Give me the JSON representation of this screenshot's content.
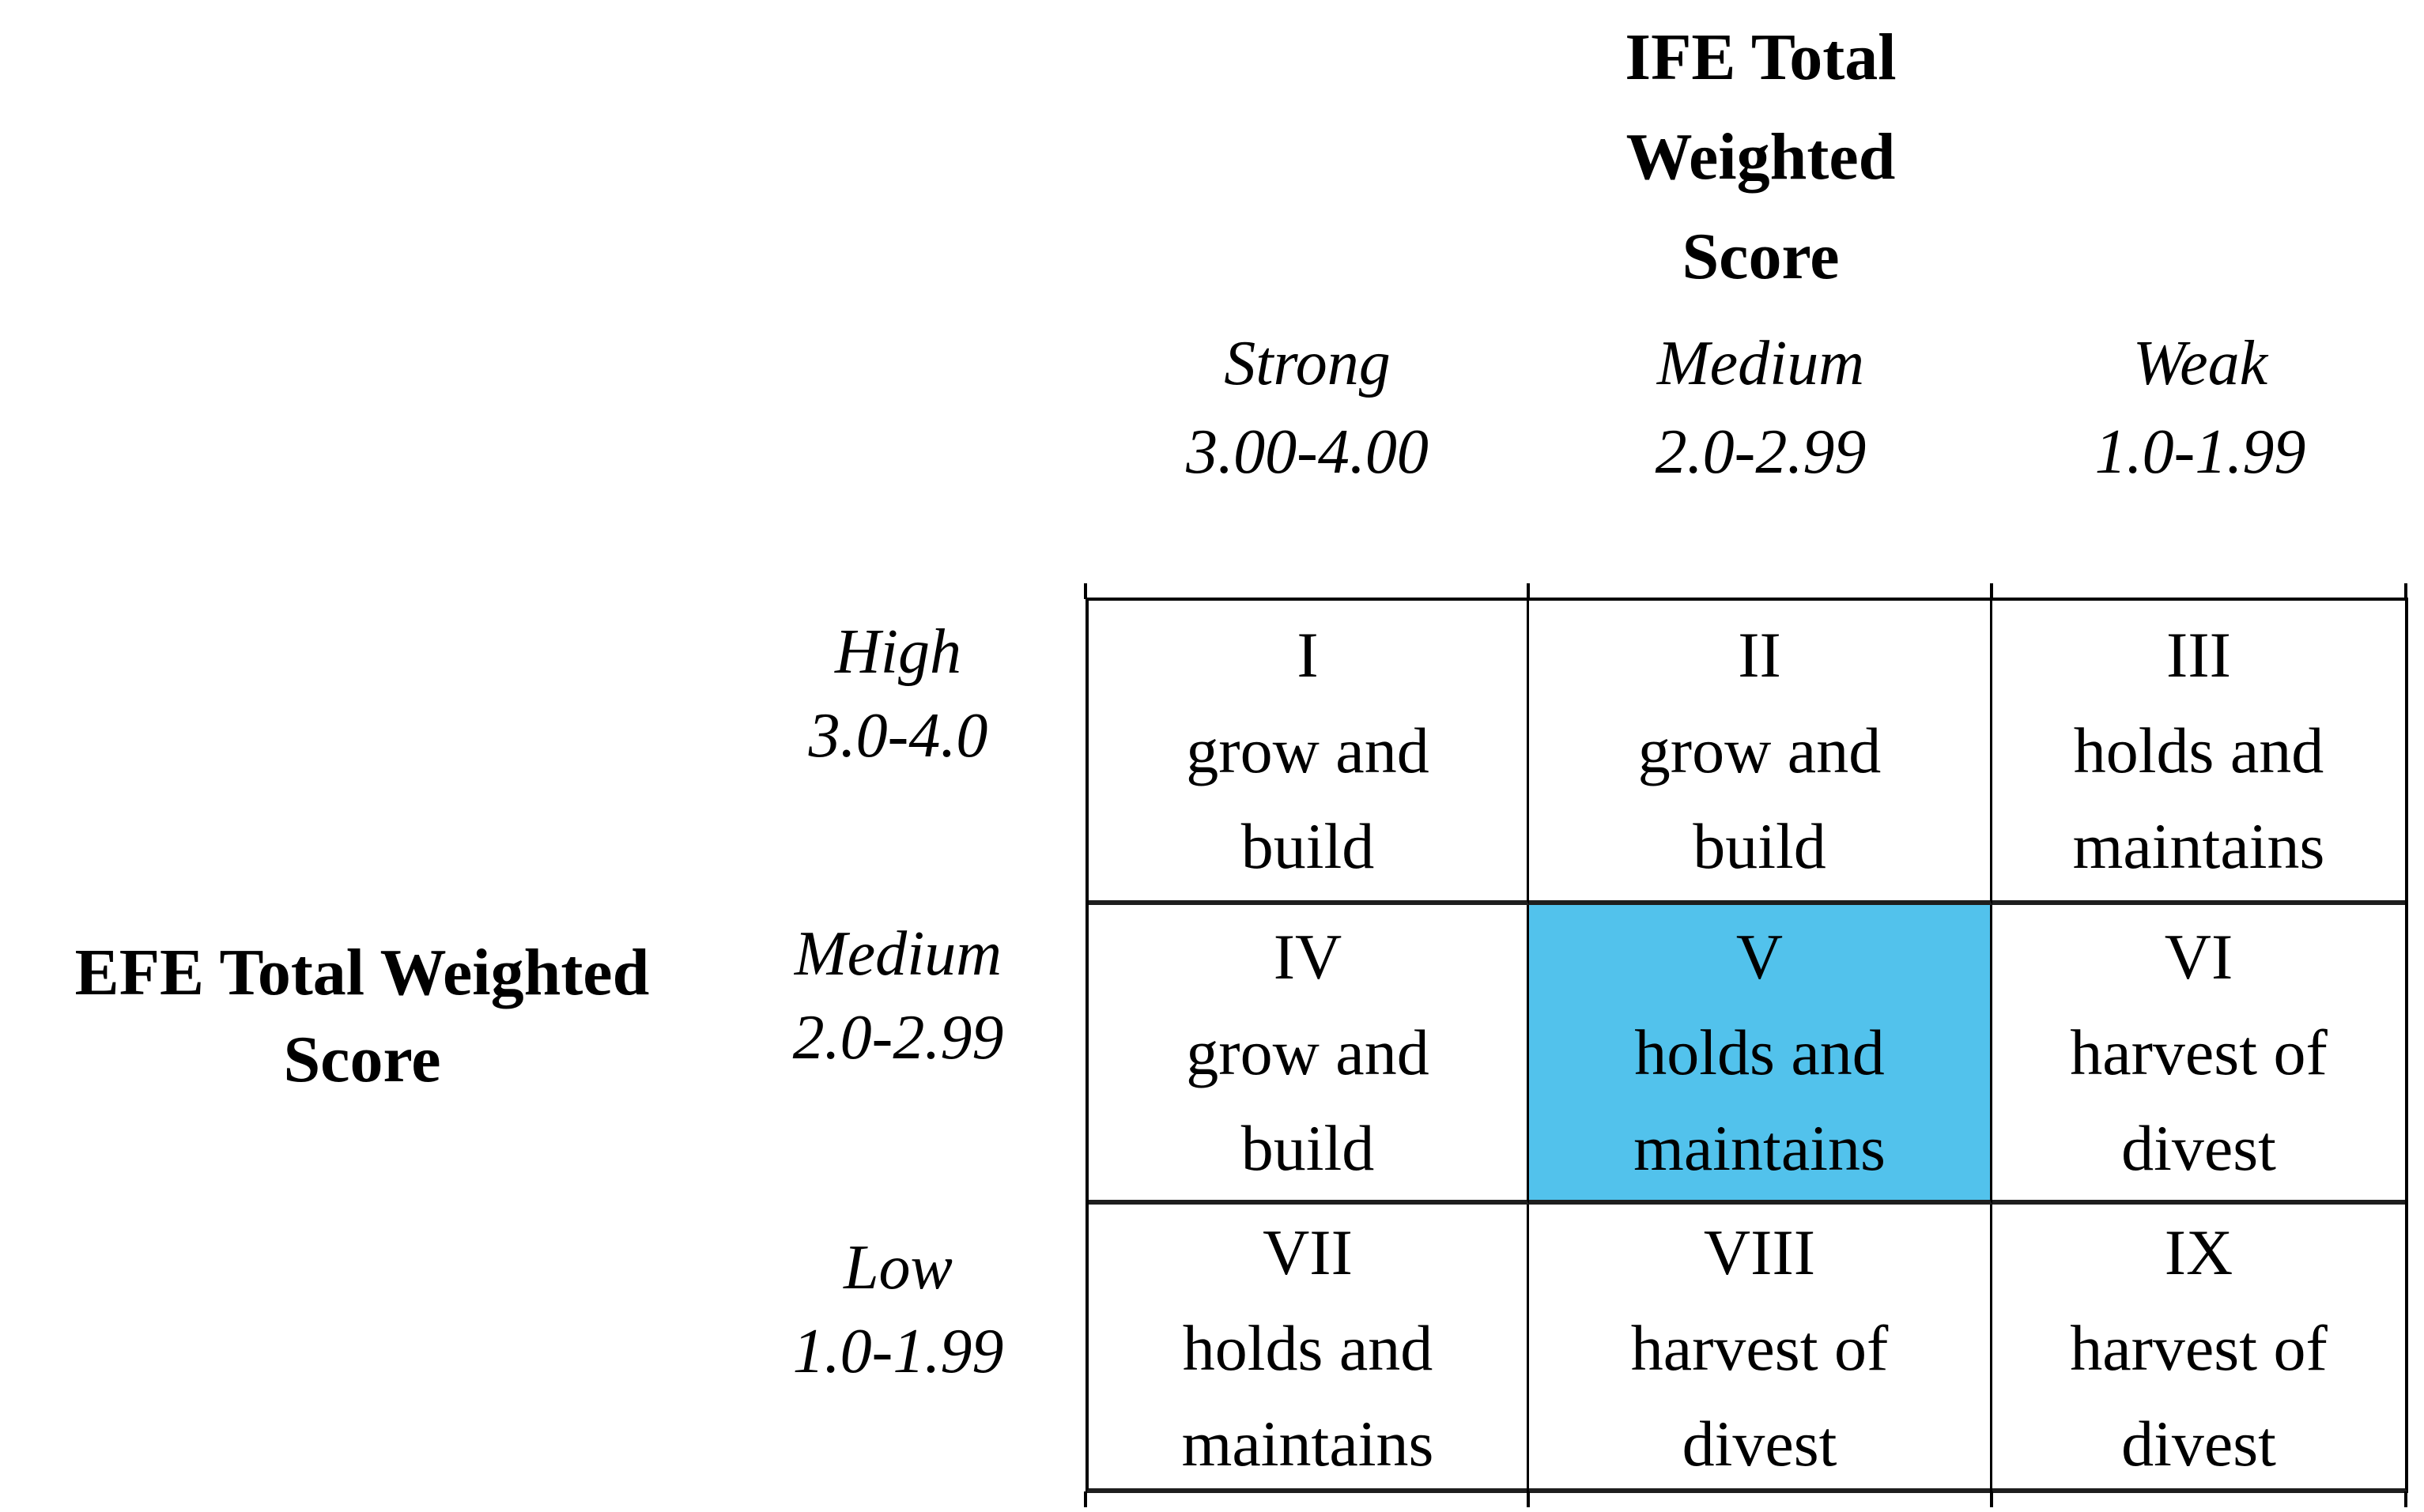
{
  "ife_axis": {
    "title": "IFE Total Weighted Score",
    "title_lines": [
      "IFE Total",
      "Weighted",
      "Score"
    ],
    "columns": [
      {
        "label": "Strong",
        "range": "3.00-4.00"
      },
      {
        "label": "Medium",
        "range": "2.0-2.99"
      },
      {
        "label": "Weak",
        "range": "1.0-1.99"
      }
    ]
  },
  "efe_axis": {
    "title": "EFE Total Weighted Score",
    "title_lines": [
      "EFE Total Weighted",
      "Score"
    ],
    "rows": [
      {
        "label": "High",
        "range": "3.0-4.0"
      },
      {
        "label": "Medium",
        "range": "2.0-2.99"
      },
      {
        "label": "Low",
        "range": "1.0-1.99"
      }
    ]
  },
  "matrix": {
    "highlight_color": "#52C2EC",
    "cells": [
      {
        "numeral": "I",
        "line1": "grow and",
        "line2": "build",
        "highlighted": false
      },
      {
        "numeral": "II",
        "line1": "grow and",
        "line2": "build",
        "highlighted": false
      },
      {
        "numeral": "III",
        "line1": "holds and",
        "line2": "maintains",
        "highlighted": false
      },
      {
        "numeral": "IV",
        "line1": "grow and",
        "line2": "build",
        "highlighted": false
      },
      {
        "numeral": "V",
        "line1": "holds and",
        "line2": "maintains",
        "highlighted": true
      },
      {
        "numeral": "VI",
        "line1": "harvest of",
        "line2": "divest",
        "highlighted": false
      },
      {
        "numeral": "VII",
        "line1": "holds and",
        "line2": "maintains",
        "highlighted": false
      },
      {
        "numeral": "VIII",
        "line1": "harvest of",
        "line2": "divest",
        "highlighted": false
      },
      {
        "numeral": "IX",
        "line1": "harvest of",
        "line2": "divest",
        "highlighted": false
      }
    ]
  }
}
